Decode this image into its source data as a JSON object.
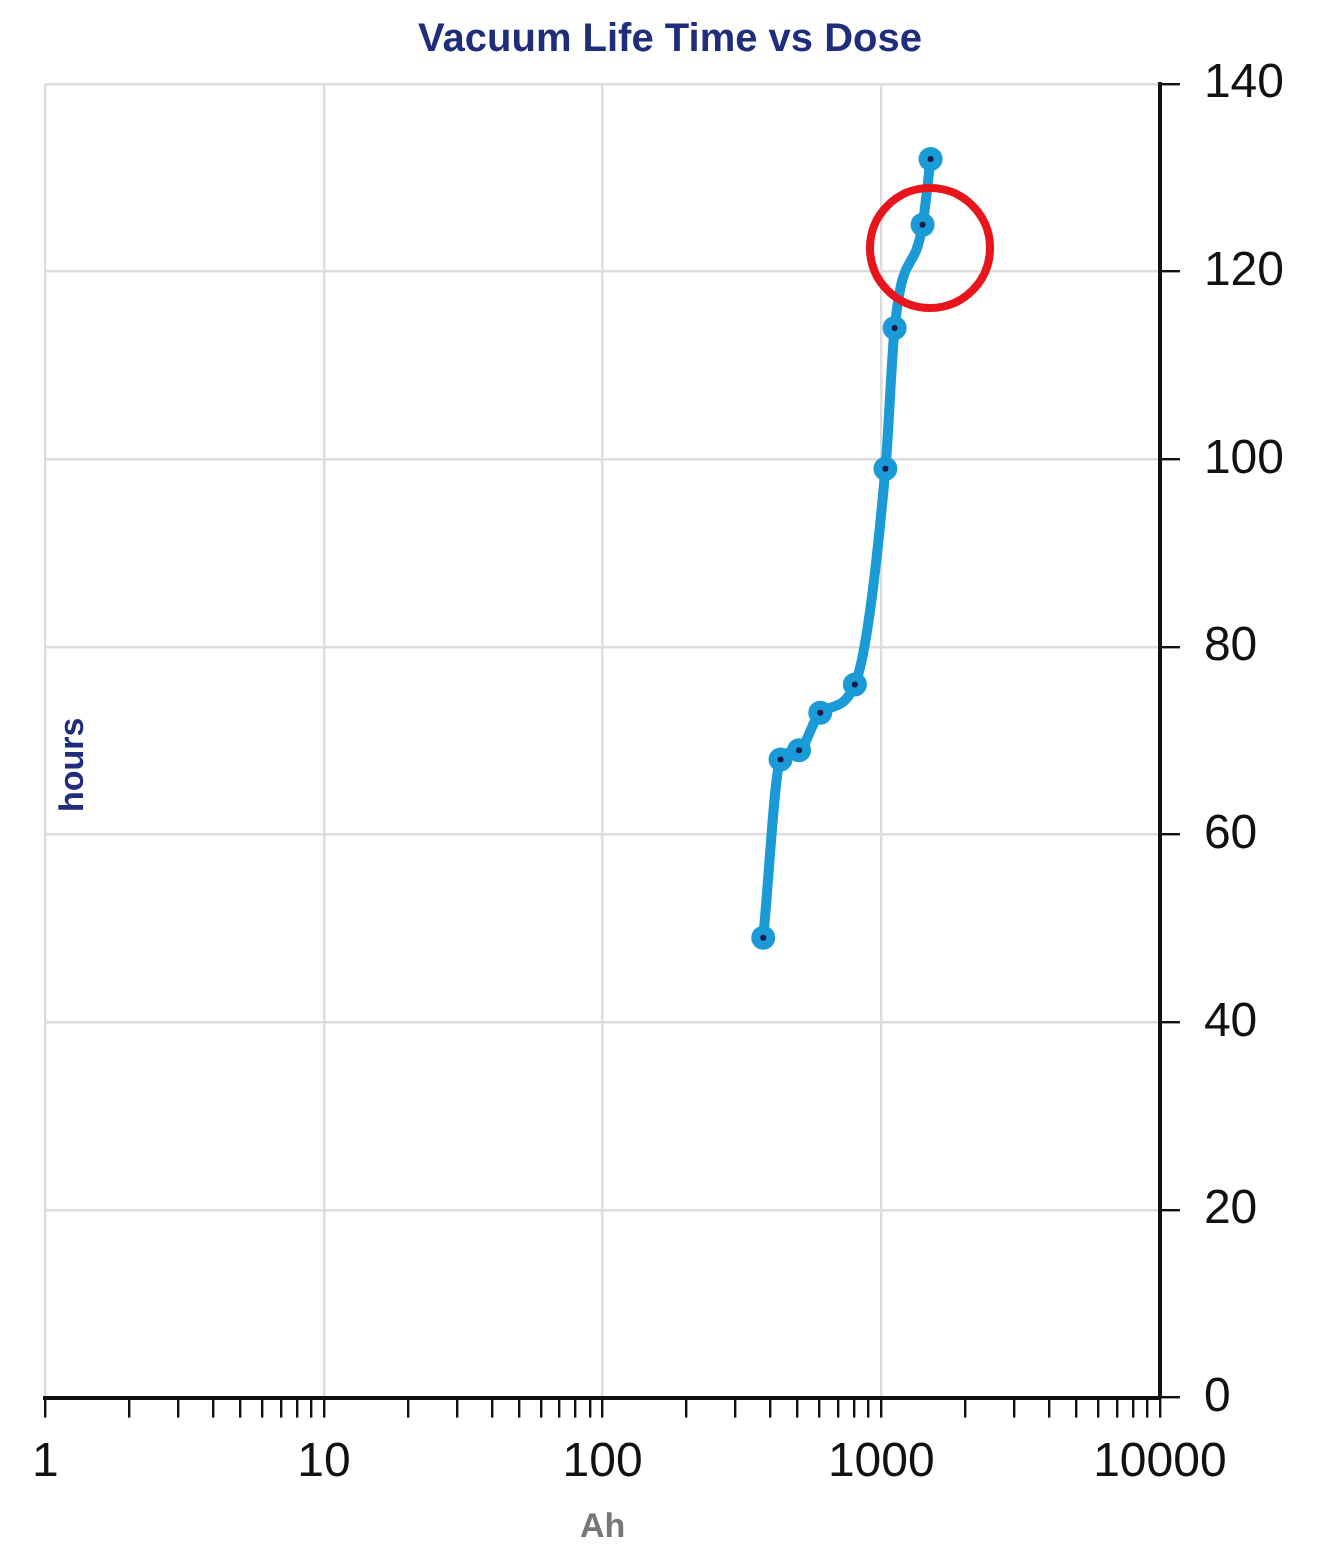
{
  "chart_data": {
    "type": "line",
    "title": "Vacuum Life Time vs Dose",
    "xlabel": "Ah",
    "ylabel": "hours",
    "x": [
      377,
      435,
      507,
      604,
      804,
      1035,
      1117,
      1407,
      1503
    ],
    "series": [
      {
        "color": "#1a9bd7",
        "values": [
          49,
          68,
          69,
          73,
          76,
          99,
          114,
          125,
          132
        ]
      }
    ],
    "log": "x",
    "xlim": [
      1,
      10000
    ],
    "xticks": [
      1,
      {
        "value": 2,
        "label": null
      },
      {
        "value": 3,
        "label": null
      },
      {
        "value": 4,
        "label": null
      },
      {
        "value": 5,
        "label": null
      },
      {
        "value": 6,
        "label": null
      },
      {
        "value": 7,
        "label": null
      },
      {
        "value": 8,
        "label": null
      },
      {
        "value": 9,
        "label": null
      },
      10,
      {
        "value": 20,
        "label": null
      },
      {
        "value": 30,
        "label": null
      },
      {
        "value": 40,
        "label": null
      },
      {
        "value": 50,
        "label": null
      },
      {
        "value": 60,
        "label": null
      },
      {
        "value": 70,
        "label": null
      },
      {
        "value": 80,
        "label": null
      },
      {
        "value": 90,
        "label": null
      },
      100,
      {
        "value": 200,
        "label": null
      },
      {
        "value": 300,
        "label": null
      },
      {
        "value": 400,
        "label": null
      },
      {
        "value": 500,
        "label": null
      },
      {
        "value": 600,
        "label": null
      },
      {
        "value": 700,
        "label": null
      },
      {
        "value": 800,
        "label": null
      },
      {
        "value": 900,
        "label": null
      },
      1000,
      {
        "value": 2000,
        "label": null
      },
      {
        "value": 3000,
        "label": null
      },
      {
        "value": 4000,
        "label": null
      },
      {
        "value": 5000,
        "label": null
      },
      {
        "value": 6000,
        "label": null
      },
      {
        "value": 7000,
        "label": null
      },
      {
        "value": 8000,
        "label": null
      },
      {
        "value": 9000,
        "label": null
      },
      10000
    ],
    "ylim": [
      0,
      140
    ],
    "yticks": [
      0,
      20,
      40,
      60,
      80,
      100,
      120,
      140
    ],
    "grid": true,
    "marker": "circle",
    "line_style": "solid",
    "legend": false
  }
}
